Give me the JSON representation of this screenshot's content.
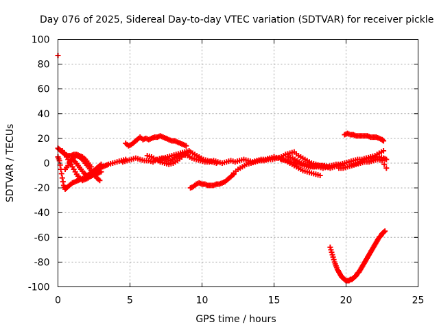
{
  "chart_data": {
    "type": "scatter",
    "title": "Day 076 of 2025, Sidereal Day-to-day VTEC variation (SDTVAR) for receiver pickle",
    "xlabel": "GPS time / hours",
    "ylabel": "SDTVAR / TECUs",
    "xlim": [
      0,
      25
    ],
    "ylim": [
      -100,
      100
    ],
    "xticks": [
      0,
      5,
      10,
      15,
      20,
      25
    ],
    "yticks": [
      -100,
      -80,
      -60,
      -40,
      -20,
      0,
      20,
      40,
      60,
      80,
      100
    ],
    "grid": true,
    "marker": "plus",
    "color": "#ff0000",
    "series": [
      {
        "x": [
          0.0
        ],
        "y": [
          87
        ]
      },
      {
        "x": [
          0.0,
          0.1,
          0.2,
          0.3,
          0.4,
          0.5,
          0.7,
          0.9,
          1.1,
          1.3,
          1.5,
          1.7,
          1.9,
          2.1,
          2.3
        ],
        "y": [
          12,
          11,
          10,
          9,
          8,
          7,
          6,
          6,
          7,
          7,
          6,
          5,
          3,
          0,
          -3
        ]
      },
      {
        "x": [
          0.0,
          0.1,
          0.2,
          0.3,
          0.4,
          0.5,
          0.6,
          0.8,
          1.0,
          1.2,
          1.4,
          1.6,
          1.8,
          2.0,
          2.2,
          2.4,
          2.6,
          2.8,
          3.0
        ],
        "y": [
          5,
          2,
          -5,
          -12,
          -18,
          -21,
          -20,
          -18,
          -16,
          -15,
          -14,
          -13,
          -12,
          -11,
          -11,
          -10,
          -9,
          -8,
          -7
        ]
      },
      {
        "x": [
          0.3,
          0.5,
          0.7,
          0.9,
          1.1,
          1.3,
          1.5,
          1.7,
          1.9,
          2.1,
          2.3,
          2.5,
          2.7,
          2.9,
          3.1,
          3.3,
          3.5,
          3.8,
          4.1,
          4.4,
          4.7
        ],
        "y": [
          10,
          7,
          3,
          -1,
          -5,
          -9,
          -12,
          -14,
          -13,
          -12,
          -10,
          -8,
          -6,
          -4,
          -3,
          -2,
          -1,
          0,
          1,
          2,
          3
        ]
      },
      {
        "x": [
          0.5,
          0.7,
          0.9,
          1.1,
          1.3,
          1.5,
          1.7,
          1.9,
          2.1,
          2.3,
          2.5,
          2.7,
          2.9
        ],
        "y": [
          -5,
          -2,
          2,
          5,
          6,
          5,
          3,
          0,
          -3,
          -6,
          -9,
          -12,
          -14
        ]
      },
      {
        "x": [
          1.0,
          1.2,
          1.4,
          1.6,
          1.8,
          2.0,
          2.2,
          2.4,
          2.6,
          2.8,
          3.0
        ],
        "y": [
          3,
          1,
          -2,
          -5,
          -8,
          -10,
          -9,
          -7,
          -5,
          -3,
          -1
        ]
      },
      {
        "x": [
          4.7,
          4.9,
          5.1,
          5.3,
          5.5,
          5.7,
          5.9,
          6.1,
          6.3,
          6.5,
          6.7,
          6.9,
          7.1,
          7.3,
          7.5,
          7.7,
          7.9,
          8.1,
          8.3,
          8.5,
          8.7,
          8.9
        ],
        "y": [
          16,
          14,
          15,
          17,
          19,
          21,
          19,
          20,
          19,
          20,
          21,
          21,
          22,
          21,
          20,
          19,
          18,
          18,
          17,
          16,
          15,
          14
        ]
      },
      {
        "x": [
          4.5,
          4.8,
          5.1,
          5.4,
          5.7,
          6.0,
          6.3,
          6.6,
          6.9,
          7.2,
          7.5,
          7.8,
          8.1,
          8.4,
          8.7,
          9.0,
          9.3,
          9.6,
          9.9,
          10.2,
          10.5,
          10.8,
          11.1,
          11.4,
          11.7,
          12.0,
          12.3,
          12.6,
          12.9,
          13.2,
          13.5,
          13.8,
          14.1,
          14.4,
          14.7,
          15.0,
          15.3,
          15.6,
          15.9,
          16.2,
          16.5,
          16.8,
          17.1,
          17.4,
          17.7,
          18.0,
          18.3,
          18.6,
          18.9,
          19.2,
          19.5,
          19.8
        ],
        "y": [
          1,
          2,
          3,
          4,
          3,
          2,
          2,
          1,
          3,
          4,
          3,
          2,
          4,
          6,
          7,
          6,
          4,
          3,
          2,
          1,
          1,
          2,
          1,
          0,
          1,
          2,
          1,
          2,
          3,
          2,
          1,
          2,
          3,
          3,
          4,
          5,
          4,
          3,
          2,
          1,
          0,
          -1,
          -2,
          -3,
          -3,
          -2,
          -2,
          -3,
          -4,
          -3,
          -2,
          -2
        ]
      },
      {
        "x": [
          6.2,
          6.5,
          6.8,
          7.1,
          7.4,
          7.7,
          8.0,
          8.3,
          8.6,
          8.9,
          9.2,
          9.5,
          9.8,
          10.1,
          10.4,
          10.7,
          11.0
        ],
        "y": [
          6,
          5,
          3,
          1,
          0,
          -1,
          0,
          2,
          5,
          8,
          9,
          7,
          5,
          3,
          2,
          1,
          0
        ]
      },
      {
        "x": [
          7.0,
          7.3,
          7.6,
          7.9,
          8.2,
          8.5,
          8.8,
          9.1
        ],
        "y": [
          2,
          4,
          5,
          6,
          7,
          8,
          9,
          10
        ]
      },
      {
        "x": [
          9.2,
          9.4,
          9.6,
          9.8,
          10.0,
          10.2,
          10.4,
          10.6,
          10.8,
          11.0,
          11.2,
          11.4,
          11.6,
          11.8,
          12.0,
          12.2
        ],
        "y": [
          -20,
          -19,
          -17,
          -16,
          -17,
          -17,
          -18,
          -18,
          -18,
          -17,
          -17,
          -16,
          -15,
          -13,
          -11,
          -9
        ]
      },
      {
        "x": [
          12.2,
          12.5,
          12.8,
          13.1,
          13.4,
          13.7,
          14.0,
          14.3,
          14.6,
          14.9,
          15.2,
          15.5,
          15.8,
          16.1,
          16.4,
          16.7,
          17.0,
          17.3,
          17.6,
          17.9,
          18.2,
          18.5,
          18.8
        ],
        "y": [
          -8,
          -5,
          -3,
          -1,
          0,
          1,
          2,
          2,
          3,
          3,
          4,
          5,
          7,
          8,
          9,
          6,
          4,
          2,
          0,
          -1,
          -2,
          -2,
          -3
        ]
      },
      {
        "x": [
          15.5,
          15.8,
          16.1,
          16.4,
          16.7,
          17.0,
          17.3,
          17.6,
          17.9,
          18.2
        ],
        "y": [
          3,
          2,
          0,
          -2,
          -4,
          -6,
          -7,
          -8,
          -9,
          -10
        ]
      },
      {
        "x": [
          16.0,
          16.3,
          16.6,
          16.9,
          17.2,
          17.5,
          17.8,
          18.1,
          18.4,
          18.7,
          19.0,
          19.3,
          19.6,
          19.9,
          20.2,
          20.5,
          20.8,
          21.1,
          21.4,
          21.7,
          22.0,
          22.3,
          22.6,
          22.8
        ],
        "y": [
          5,
          4,
          2,
          0,
          -1,
          -2,
          -3,
          -3,
          -4,
          -3,
          -2,
          -1,
          -1,
          0,
          1,
          2,
          3,
          3,
          4,
          4,
          5,
          5,
          4,
          3
        ]
      },
      {
        "x": [
          19.5,
          19.8,
          20.1,
          20.4,
          20.7,
          21.0,
          21.3,
          21.6,
          21.9,
          22.2,
          22.5,
          22.8
        ],
        "y": [
          -4,
          -4,
          -3,
          -2,
          -1,
          0,
          1,
          1,
          2,
          3,
          2,
          -4
        ]
      },
      {
        "x": [
          20.5,
          20.8,
          21.1,
          21.4,
          21.7,
          22.0,
          22.3,
          22.6
        ],
        "y": [
          -1,
          0,
          2,
          4,
          5,
          6,
          8,
          10
        ]
      },
      {
        "x": [
          19.9,
          20.1,
          20.3,
          20.5,
          20.7,
          20.9,
          21.1,
          21.3,
          21.5,
          21.7,
          21.9,
          22.1,
          22.3,
          22.5,
          22.6
        ],
        "y": [
          23,
          24,
          23,
          23,
          22,
          22,
          22,
          22,
          22,
          21,
          21,
          21,
          20,
          19,
          18
        ]
      },
      {
        "x": [
          18.9,
          19.0,
          19.1,
          19.2,
          19.3,
          19.4,
          19.5,
          19.6,
          19.7,
          19.8,
          19.9,
          20.0,
          20.1,
          20.2,
          20.3,
          20.4,
          20.5,
          20.6,
          20.7,
          20.8,
          20.9,
          21.0,
          21.1,
          21.2,
          21.3,
          21.4,
          21.5,
          21.6,
          21.7,
          21.8,
          21.9,
          22.0,
          22.1,
          22.2,
          22.3,
          22.4,
          22.5,
          22.6,
          22.7
        ],
        "y": [
          -68,
          -72,
          -76,
          -80,
          -83,
          -86,
          -88,
          -90,
          -92,
          -93,
          -94,
          -95,
          -95,
          -95,
          -94,
          -94,
          -93,
          -92,
          -91,
          -89,
          -88,
          -86,
          -84,
          -82,
          -80,
          -78,
          -76,
          -74,
          -72,
          -70,
          -68,
          -66,
          -64,
          -62,
          -60,
          -59,
          -57,
          -56,
          -55
        ]
      }
    ]
  }
}
